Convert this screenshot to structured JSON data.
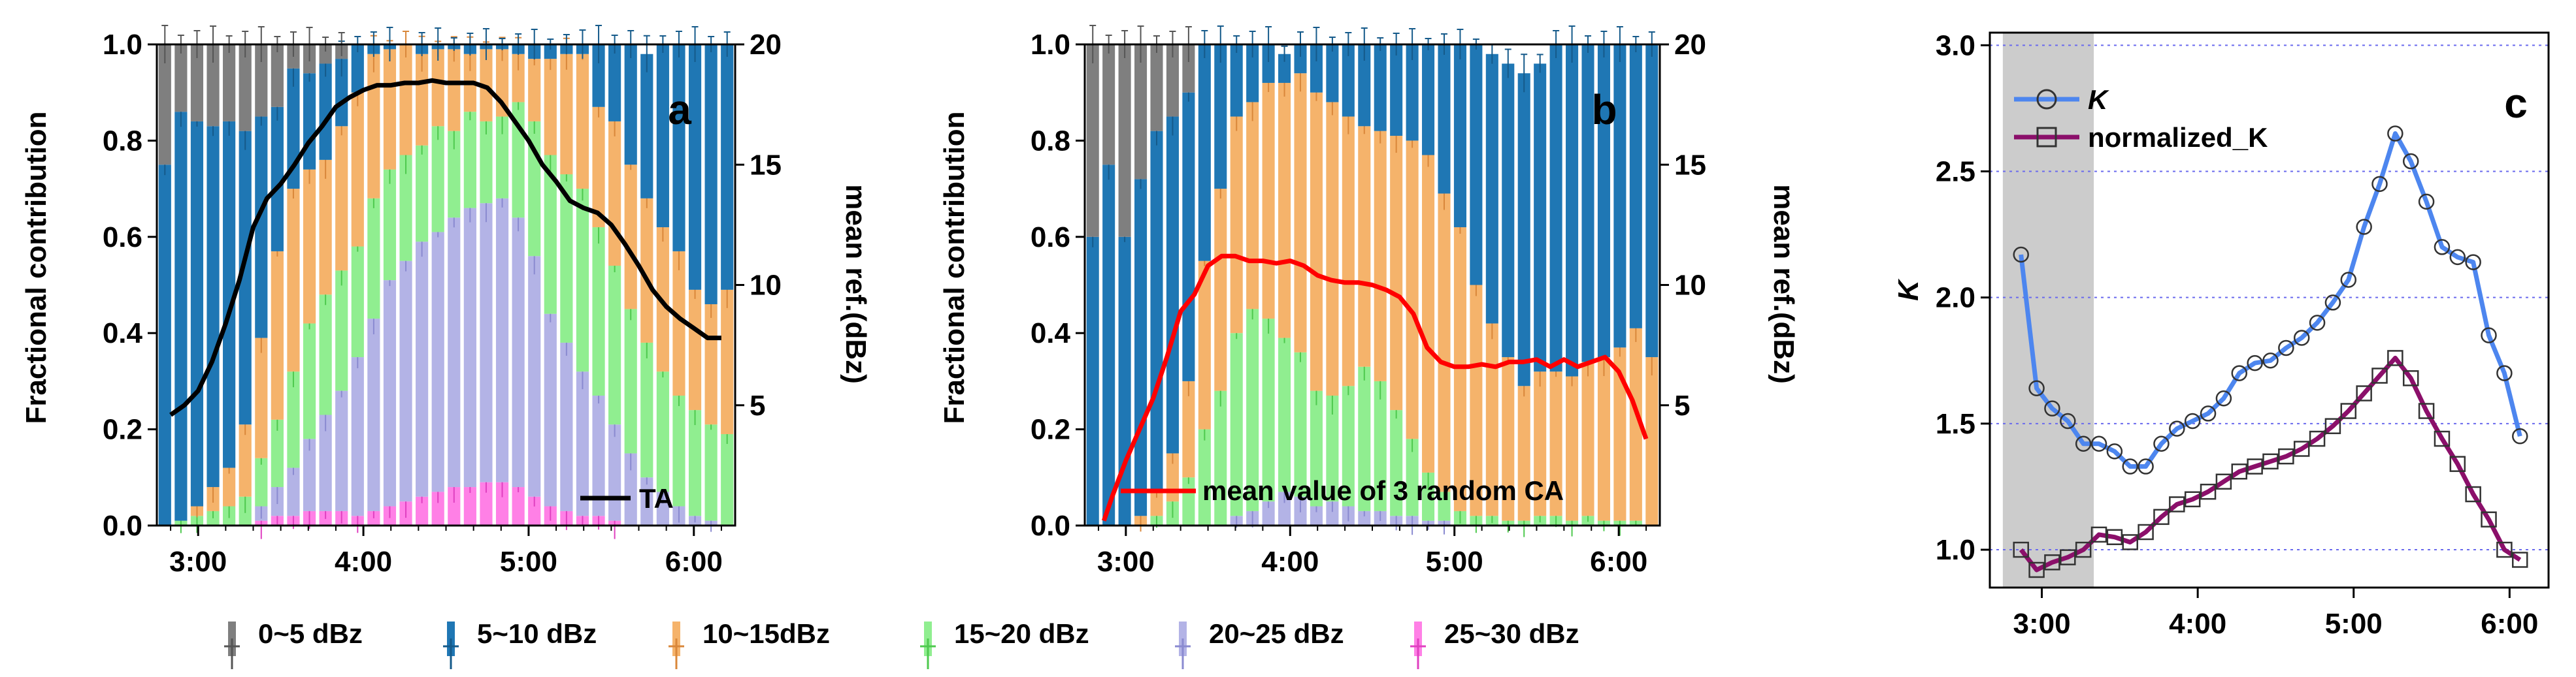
{
  "chart_data": [
    {
      "id": "a",
      "type": "bar",
      "panel_label": "a",
      "ylabel": "Fractional contribution",
      "y2label": "mean ref.(dBz)",
      "ylim": [
        0,
        1
      ],
      "y2lim": [
        0,
        20
      ],
      "yticks": [
        "0.0",
        "0.2",
        "0.4",
        "0.6",
        "0.8",
        "1.0"
      ],
      "y2ticks": [
        "5",
        "10",
        "15",
        "20"
      ],
      "xticks": [
        "3:00",
        "4:00",
        "5:00",
        "6:00"
      ],
      "x_range_minutes": [
        165,
        375
      ],
      "bar_interval_minutes": 6,
      "stack_order": [
        "25~30 dBz",
        "20~25 dBz",
        "15~20 dBz",
        "10~15dBz",
        "5~10 dBz",
        "0~5 dBz"
      ],
      "series": [
        {
          "name": "25~30 dBz",
          "values": [
            0,
            0,
            0,
            0,
            0,
            0,
            0.01,
            0.02,
            0.02,
            0.03,
            0.03,
            0.03,
            0.02,
            0.03,
            0.04,
            0.05,
            0.06,
            0.07,
            0.08,
            0.08,
            0.09,
            0.09,
            0.08,
            0.06,
            0.04,
            0.03,
            0.02,
            0.02,
            0.01,
            0,
            0,
            0,
            0,
            0,
            0,
            0
          ]
        },
        {
          "name": "20~25 dBz",
          "values": [
            0,
            0,
            0,
            0,
            0,
            0,
            0.03,
            0.06,
            0.1,
            0.15,
            0.2,
            0.25,
            0.33,
            0.4,
            0.47,
            0.5,
            0.53,
            0.54,
            0.56,
            0.58,
            0.58,
            0.59,
            0.56,
            0.5,
            0.4,
            0.35,
            0.3,
            0.25,
            0.2,
            0.15,
            0.1,
            0.07,
            0.04,
            0.02,
            0.01,
            0
          ]
        },
        {
          "name": "15~20 dBz",
          "values": [
            0,
            0.01,
            0.02,
            0.03,
            0.04,
            0.06,
            0.1,
            0.14,
            0.2,
            0.24,
            0.25,
            0.25,
            0.23,
            0.25,
            0.23,
            0.22,
            0.2,
            0.22,
            0.18,
            0.2,
            0.17,
            0.17,
            0.24,
            0.28,
            0.33,
            0.35,
            0.38,
            0.35,
            0.33,
            0.3,
            0.28,
            0.25,
            0.23,
            0.22,
            0.2,
            0.19
          ]
        },
        {
          "name": "10~15dBz",
          "values": [
            0,
            0,
            0.02,
            0.05,
            0.08,
            0.15,
            0.25,
            0.35,
            0.38,
            0.32,
            0.28,
            0.3,
            0.32,
            0.3,
            0.25,
            0.23,
            0.19,
            0.16,
            0.17,
            0.12,
            0.15,
            0.14,
            0.1,
            0.13,
            0.2,
            0.25,
            0.28,
            0.25,
            0.3,
            0.3,
            0.3,
            0.3,
            0.3,
            0.25,
            0.25,
            0.3
          ]
        },
        {
          "name": "5~10 dBz",
          "values": [
            0.75,
            0.85,
            0.8,
            0.75,
            0.72,
            0.61,
            0.46,
            0.3,
            0.25,
            0.2,
            0.2,
            0.14,
            0.1,
            0.02,
            0.01,
            0,
            0.02,
            0.01,
            0.01,
            0.02,
            0.01,
            0.01,
            0.02,
            0.03,
            0.03,
            0.02,
            0.02,
            0.13,
            0.16,
            0.25,
            0.3,
            0.38,
            0.43,
            0.51,
            0.54,
            0.51
          ]
        },
        {
          "name": "0~5 dBz",
          "values": [
            0.25,
            0.14,
            0.16,
            0.17,
            0.16,
            0.18,
            0.15,
            0.13,
            0.05,
            0.06,
            0.04,
            0.03,
            0,
            0,
            0,
            0,
            0,
            0,
            0,
            0,
            0,
            0,
            0,
            0,
            0,
            0,
            0,
            0,
            0,
            0,
            0,
            0,
            0,
            0,
            0,
            0
          ]
        }
      ],
      "line": {
        "name": "TA",
        "x_minutes": [
          170,
          175,
          180,
          185,
          190,
          195,
          200,
          205,
          210,
          215,
          220,
          225,
          230,
          235,
          240,
          245,
          250,
          255,
          260,
          265,
          270,
          275,
          280,
          285,
          290,
          295,
          300,
          305,
          310,
          315,
          320,
          325,
          330,
          335,
          340,
          345,
          350,
          355,
          360,
          365,
          370
        ],
        "values": [
          4.6,
          5.0,
          5.6,
          6.8,
          8.4,
          10.2,
          12.4,
          13.6,
          14.2,
          15.0,
          15.9,
          16.6,
          17.4,
          17.8,
          18.1,
          18.3,
          18.3,
          18.4,
          18.4,
          18.5,
          18.4,
          18.4,
          18.4,
          18.2,
          17.6,
          16.8,
          16.0,
          15.0,
          14.3,
          13.5,
          13.2,
          13.0,
          12.5,
          11.7,
          10.8,
          9.8,
          9.1,
          8.6,
          8.2,
          7.8,
          7.8
        ]
      },
      "legend_position": "bottom-right"
    },
    {
      "id": "b",
      "type": "bar",
      "panel_label": "b",
      "ylabel": "Fractional contribution",
      "y2label": "mean ref.(dBz)",
      "ylim": [
        0,
        1
      ],
      "y2lim": [
        0,
        20
      ],
      "yticks": [
        "0.0",
        "0.2",
        "0.4",
        "0.6",
        "0.8",
        "1.0"
      ],
      "y2ticks": [
        "5",
        "10",
        "15",
        "20"
      ],
      "xticks": [
        "3:00",
        "4:00",
        "5:00",
        "6:00"
      ],
      "x_range_minutes": [
        165,
        375
      ],
      "bar_interval_minutes": 6,
      "stack_order": [
        "25~30 dBz",
        "20~25 dBz",
        "15~20 dBz",
        "10~15dBz",
        "5~10 dBz",
        "0~5 dBz"
      ],
      "series": [
        {
          "name": "25~30 dBz",
          "values": [
            0,
            0,
            0,
            0,
            0,
            0,
            0,
            0,
            0,
            0,
            0,
            0,
            0,
            0,
            0,
            0,
            0,
            0,
            0,
            0,
            0,
            0,
            0,
            0,
            0,
            0,
            0,
            0,
            0,
            0,
            0,
            0,
            0,
            0,
            0,
            0
          ]
        },
        {
          "name": "20~25 dBz",
          "values": [
            0,
            0,
            0,
            0,
            0,
            0,
            0,
            0,
            0,
            0.02,
            0.03,
            0.05,
            0.07,
            0.06,
            0.04,
            0.05,
            0.04,
            0.03,
            0.03,
            0.02,
            0.02,
            0.01,
            0.01,
            0,
            0,
            0,
            0,
            0,
            0,
            0,
            0,
            0,
            0,
            0,
            0,
            0
          ]
        },
        {
          "name": "15~20 dBz",
          "values": [
            0,
            0,
            0,
            0,
            0.02,
            0.05,
            0.1,
            0.2,
            0.28,
            0.38,
            0.42,
            0.38,
            0.32,
            0.3,
            0.24,
            0.22,
            0.25,
            0.3,
            0.27,
            0.22,
            0.16,
            0.1,
            0.06,
            0.03,
            0.02,
            0.02,
            0.01,
            0.01,
            0.02,
            0.02,
            0.01,
            0.02,
            0.01,
            0.01,
            0.01,
            0
          ]
        },
        {
          "name": "10~15dBz",
          "values": [
            0,
            0,
            0,
            0.02,
            0.05,
            0.1,
            0.2,
            0.35,
            0.42,
            0.45,
            0.43,
            0.49,
            0.53,
            0.58,
            0.62,
            0.61,
            0.56,
            0.5,
            0.52,
            0.57,
            0.62,
            0.66,
            0.62,
            0.59,
            0.48,
            0.4,
            0.34,
            0.28,
            0.3,
            0.3,
            0.3,
            0.32,
            0.34,
            0.36,
            0.4,
            0.35
          ]
        },
        {
          "name": "5~10 dBz",
          "values": [
            0.6,
            0.75,
            0.6,
            0.7,
            0.75,
            0.7,
            0.6,
            0.45,
            0.3,
            0.15,
            0.12,
            0.08,
            0.06,
            0.06,
            0.1,
            0.12,
            0.15,
            0.17,
            0.18,
            0.19,
            0.22,
            0.23,
            0.31,
            0.38,
            0.5,
            0.56,
            0.61,
            0.65,
            0.64,
            0.68,
            0.69,
            0.66,
            0.65,
            0.63,
            0.59,
            0.65
          ]
        },
        {
          "name": "0~5 dBz",
          "values": [
            0.4,
            0.25,
            0.4,
            0.28,
            0.18,
            0.15,
            0.1,
            0,
            0,
            0,
            0,
            0,
            0,
            0,
            0,
            0,
            0,
            0,
            0,
            0,
            0,
            0,
            0,
            0,
            0,
            0,
            0,
            0,
            0,
            0,
            0,
            0,
            0,
            0,
            0,
            0
          ]
        }
      ],
      "line": {
        "name": "mean value of 3 random CA",
        "x_minutes": [
          172,
          175,
          180,
          185,
          190,
          195,
          200,
          205,
          210,
          215,
          220,
          225,
          230,
          235,
          240,
          245,
          250,
          255,
          260,
          265,
          270,
          275,
          280,
          285,
          290,
          295,
          300,
          305,
          310,
          315,
          320,
          325,
          330,
          335,
          340,
          345,
          350,
          355,
          360,
          365,
          370
        ],
        "values": [
          0.2,
          1.2,
          2.7,
          4.0,
          5.3,
          7.0,
          8.9,
          9.6,
          10.8,
          11.2,
          11.2,
          11.0,
          11.0,
          10.9,
          11.0,
          10.8,
          10.4,
          10.2,
          10.1,
          10.1,
          10.0,
          9.8,
          9.5,
          8.8,
          7.4,
          6.8,
          6.6,
          6.6,
          6.7,
          6.6,
          6.8,
          6.8,
          6.9,
          6.6,
          6.9,
          6.6,
          6.8,
          7.0,
          6.4,
          5.2,
          3.6
        ]
      },
      "legend_position": "bottom"
    },
    {
      "id": "c",
      "type": "line",
      "panel_label": "c",
      "ylabel": "K",
      "ylim": [
        0.85,
        3.05
      ],
      "yticks": [
        "1.0",
        "1.5",
        "2.0",
        "2.5",
        "3.0"
      ],
      "xticks": [
        "3:00",
        "4:00",
        "5:00",
        "6:00"
      ],
      "x_range_minutes": [
        160,
        375
      ],
      "shaded_region_minutes": [
        165,
        200
      ],
      "grid": "horizontal dotted",
      "x_minutes": [
        172,
        178,
        184,
        190,
        196,
        202,
        208,
        214,
        220,
        226,
        232,
        238,
        244,
        250,
        256,
        262,
        268,
        274,
        280,
        286,
        292,
        298,
        304,
        310,
        316,
        322,
        328,
        334,
        340,
        346,
        352,
        358,
        364
      ],
      "series": [
        {
          "name": "K",
          "marker": "circle",
          "values": [
            2.17,
            1.64,
            1.56,
            1.51,
            1.42,
            1.42,
            1.39,
            1.33,
            1.33,
            1.42,
            1.48,
            1.51,
            1.54,
            1.6,
            1.7,
            1.74,
            1.75,
            1.8,
            1.84,
            1.9,
            1.98,
            2.07,
            2.28,
            2.45,
            2.65,
            2.54,
            2.38,
            2.2,
            2.16,
            2.14,
            1.85,
            1.7,
            1.45
          ]
        },
        {
          "name": "normalized_K",
          "marker": "square",
          "values": [
            1.0,
            0.92,
            0.95,
            0.97,
            1.0,
            1.06,
            1.05,
            1.03,
            1.07,
            1.13,
            1.18,
            1.2,
            1.23,
            1.27,
            1.31,
            1.33,
            1.35,
            1.37,
            1.4,
            1.44,
            1.49,
            1.55,
            1.62,
            1.69,
            1.76,
            1.68,
            1.55,
            1.44,
            1.34,
            1.22,
            1.12,
            1.0,
            0.96
          ]
        }
      ],
      "legend_position": "top-left"
    }
  ],
  "legend": {
    "items": [
      {
        "label": "0~5 dBz",
        "color": "#7f7f7f"
      },
      {
        "label": "5~10 dBz",
        "color": "#1f77b4"
      },
      {
        "label": "10~15dBz",
        "color": "#f5b36b"
      },
      {
        "label": "15~20 dBz",
        "color": "#90ee90"
      },
      {
        "label": "20~25 dBz",
        "color": "#b3b3e6"
      },
      {
        "label": "25~30 dBz",
        "color": "#ff80e6"
      }
    ]
  },
  "colors": {
    "ta_line": "#000000",
    "ca_line": "#ff0000",
    "k_line": "#4d86ef",
    "nk_line": "#8b0f6a",
    "shade": "#cccccc",
    "grid": "#6a6aee"
  }
}
